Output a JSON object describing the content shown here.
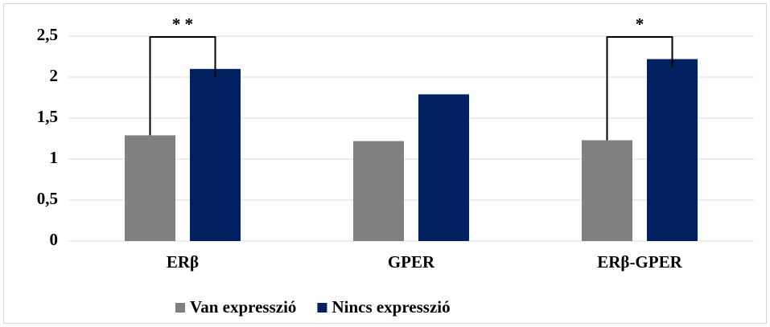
{
  "chart_data": {
    "type": "bar",
    "categories": [
      "ERβ",
      "GPER",
      "ERβ-GPER"
    ],
    "series": [
      {
        "name": "Van expresszió",
        "color": "#808080",
        "values": [
          1.29,
          1.22,
          1.23
        ]
      },
      {
        "name": "Nincs expresszió",
        "color": "#002060",
        "values": [
          2.1,
          1.79,
          2.22
        ]
      }
    ],
    "annotations": [
      "* *",
      null,
      "*"
    ],
    "ylim": [
      0,
      2.5
    ],
    "yticks": [
      0,
      {
        "value": 0.5,
        "label": "0,5"
      },
      1,
      {
        "value": 1.5,
        "label": "1,5"
      },
      2,
      {
        "value": 2.5,
        "label": "2,5"
      }
    ],
    "grid": true,
    "legend": "bottom"
  }
}
